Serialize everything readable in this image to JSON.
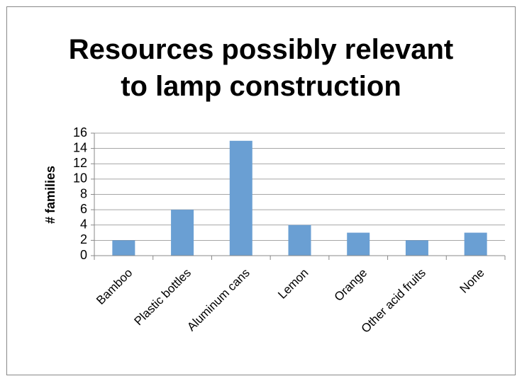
{
  "chart_data": {
    "type": "bar",
    "title": "Resources possibly relevant to lamp construction",
    "y_label": "# families",
    "categories": [
      "Bamboo",
      "Plastic bottles",
      "Aluminum cans",
      "Lemon",
      "Orange",
      "Other acid fruits",
      "None"
    ],
    "values": [
      2,
      6,
      15,
      4,
      3,
      2,
      3
    ],
    "color": "#6a9fd3",
    "ylim": [
      0,
      16
    ],
    "yticks": [
      0,
      2,
      4,
      6,
      8,
      10,
      12,
      14,
      16
    ],
    "grid": true
  }
}
